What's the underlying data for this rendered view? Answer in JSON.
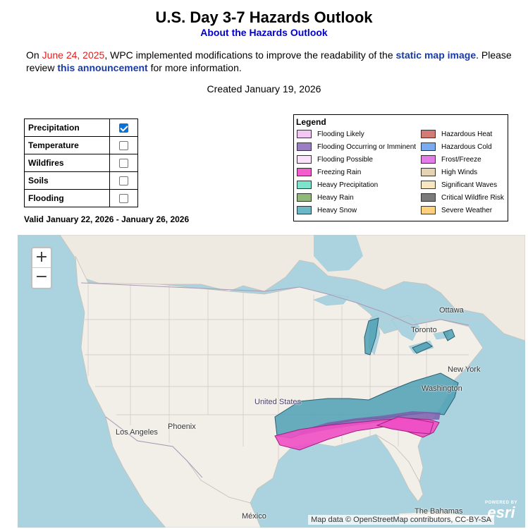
{
  "header": {
    "title": "U.S. Day 3-7 Hazards Outlook",
    "about_link": "About the Hazards Outlook"
  },
  "notice": {
    "prefix": "On ",
    "date": "June 24, 2025",
    "middle": ", WPC implemented modifications to improve the readability of the ",
    "link1": "static map image",
    "line2_prefix": ". Please review ",
    "link2": "this announcement",
    "suffix": " for more information."
  },
  "created": "Created January 19, 2026",
  "toggles": [
    {
      "label": "Precipitation",
      "checked": true
    },
    {
      "label": "Temperature",
      "checked": false
    },
    {
      "label": "Wildfires",
      "checked": false
    },
    {
      "label": "Soils",
      "checked": false
    },
    {
      "label": "Flooding",
      "checked": false
    }
  ],
  "valid": "Valid January 22, 2026 - January 26, 2026",
  "legend": {
    "title": "Legend",
    "left": [
      {
        "label": "Flooding Likely",
        "color": "#f4c6f4"
      },
      {
        "label": "Flooding Occurring or Imminent",
        "color": "#9b7fc4"
      },
      {
        "label": "Flooding Possible",
        "color": "#fbe4fb"
      },
      {
        "label": "Freezing Rain",
        "color": "#f25ccc"
      },
      {
        "label": "Heavy Precipitation",
        "color": "#7de3cc"
      },
      {
        "label": "Heavy Rain",
        "color": "#8fb87a"
      },
      {
        "label": "Heavy Snow",
        "color": "#6cb7c8"
      }
    ],
    "right": [
      {
        "label": "Hazardous Heat",
        "color": "#d47a76"
      },
      {
        "label": "Hazardous Cold",
        "color": "#7aaaf0"
      },
      {
        "label": "Frost/Freeze",
        "color": "#e27ce6"
      },
      {
        "label": "High Winds",
        "color": "#e5d3b4"
      },
      {
        "label": "Significant Waves",
        "color": "#f8e6c0"
      },
      {
        "label": "Critical Wildfire Risk",
        "color": "#7a7a7a"
      },
      {
        "label": "Severe Weather",
        "color": "#fcd27c"
      }
    ]
  },
  "map": {
    "zoom_in": "+",
    "zoom_out": "−",
    "attribution": "Map data © OpenStreetMap contributors, CC-BY-SA",
    "esri_powered": "POWERED BY",
    "esri_name": "esri",
    "labels": {
      "ottawa": "Ottawa",
      "toronto": "Toronto",
      "new_york": "New York",
      "washington": "Washington",
      "united_states": "United States",
      "phoenix": "Phoenix",
      "los_angeles": "Los Angeles",
      "mexico": "México",
      "bahamas": "The Bahamas"
    }
  }
}
